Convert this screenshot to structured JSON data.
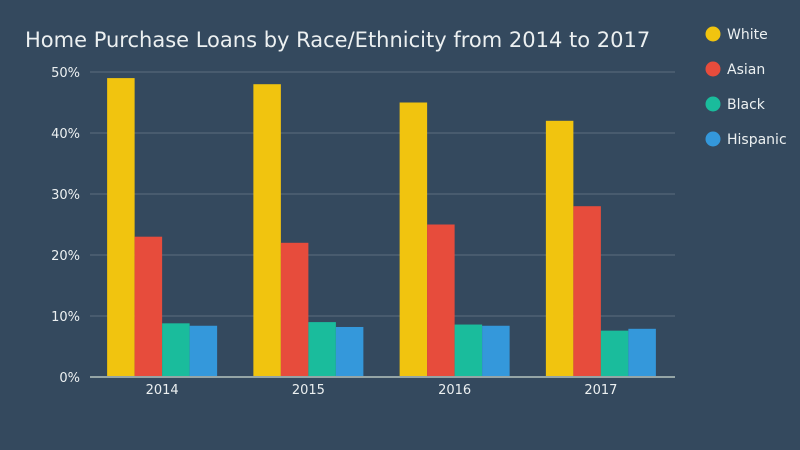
{
  "chart_data": {
    "type": "bar",
    "title": "Home Purchase Loans by Race/Ethnicity from 2014 to 2017",
    "xlabel": "",
    "ylabel": "",
    "categories": [
      "2014",
      "2015",
      "2016",
      "2017"
    ],
    "series": [
      {
        "name": "White",
        "color": "#f1c40f",
        "values": [
          49,
          48,
          45,
          42
        ]
      },
      {
        "name": "Asian",
        "color": "#e74c3c",
        "values": [
          23,
          22,
          25,
          28
        ]
      },
      {
        "name": "Black",
        "color": "#1abc9c",
        "values": [
          8.8,
          9.0,
          8.6,
          7.6
        ]
      },
      {
        "name": "Hispanic",
        "color": "#3498db",
        "values": [
          8.4,
          8.2,
          8.4,
          7.9
        ]
      }
    ],
    "ylim": [
      0,
      50
    ],
    "yticks": [
      {
        "value": 0,
        "label": "0%"
      },
      {
        "value": 10,
        "label": "10%"
      },
      {
        "value": 20,
        "label": "20%"
      },
      {
        "value": 30,
        "label": "30%"
      },
      {
        "value": 40,
        "label": "40%"
      },
      {
        "value": 50,
        "label": "50%"
      }
    ],
    "grid": true,
    "legend_position": "right"
  }
}
